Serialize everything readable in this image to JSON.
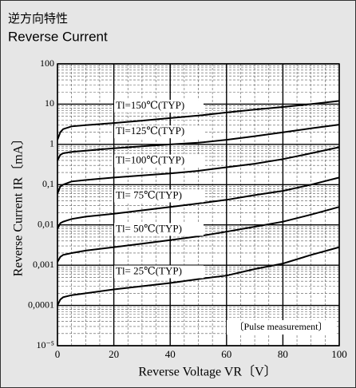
{
  "chart_data": {
    "type": "line",
    "title": "逆方向特性",
    "subtitle": "Reverse Current",
    "xlabel": "Reverse Voltage  VR〔V〕",
    "ylabel": "Reverse Current  IR〔mA〕",
    "annotation": "〔Pulse measurement〕",
    "x": [
      0,
      1,
      2,
      5,
      10,
      20,
      30,
      40,
      50,
      60,
      70,
      80,
      90,
      100
    ],
    "series": [
      {
        "name": "Tl=150℃(TYP)",
        "color": "#000000",
        "values": [
          1.3,
          2.0,
          2.4,
          2.8,
          3.0,
          3.4,
          3.9,
          4.5,
          5.2,
          6.2,
          7.3,
          8.5,
          10,
          12
        ]
      },
      {
        "name": "Tl=125℃(TYP)",
        "color": "#000000",
        "values": [
          0.4,
          0.55,
          0.6,
          0.65,
          0.7,
          0.8,
          0.9,
          1.0,
          1.1,
          1.3,
          1.6,
          2.0,
          2.5,
          3.1
        ]
      },
      {
        "name": "Tl=100℃(TYP)",
        "color": "#000000",
        "values": [
          0.06,
          0.09,
          0.1,
          0.12,
          0.13,
          0.15,
          0.17,
          0.19,
          0.22,
          0.27,
          0.33,
          0.43,
          0.6,
          0.85
        ]
      },
      {
        "name": "Tl= 75℃(TYP)",
        "color": "#000000",
        "values": [
          0.008,
          0.011,
          0.012,
          0.014,
          0.016,
          0.019,
          0.023,
          0.028,
          0.034,
          0.042,
          0.055,
          0.07,
          0.1,
          0.15
        ]
      },
      {
        "name": "Tl= 50℃(TYP)",
        "color": "#000000",
        "values": [
          0.0012,
          0.0016,
          0.0018,
          0.002,
          0.0023,
          0.0028,
          0.0034,
          0.0042,
          0.0052,
          0.0068,
          0.009,
          0.012,
          0.018,
          0.028
        ]
      },
      {
        "name": "Tl= 25℃(TYP)",
        "color": "#000000",
        "values": [
          0.0001,
          0.00014,
          0.00016,
          0.00018,
          0.0002,
          0.00025,
          0.0003,
          0.00036,
          0.00045,
          0.00055,
          0.0008,
          0.0011,
          0.0018,
          0.0028
        ]
      }
    ],
    "xlim": [
      0,
      100
    ],
    "xticks": [
      0,
      20,
      40,
      60,
      80,
      100
    ],
    "ylim": [
      1e-05,
      100
    ],
    "yticks": [
      {
        "value": 1e-05,
        "label": "10⁻⁵"
      },
      {
        "value": 0.0001,
        "label": "0,0001"
      },
      {
        "value": 0.001,
        "label": "0,001"
      },
      {
        "value": 0.01,
        "label": "0,01"
      },
      {
        "value": 0.1,
        "label": "0,1"
      },
      1,
      10,
      100
    ],
    "ylog": true,
    "grid": true,
    "minor_grid": true
  }
}
